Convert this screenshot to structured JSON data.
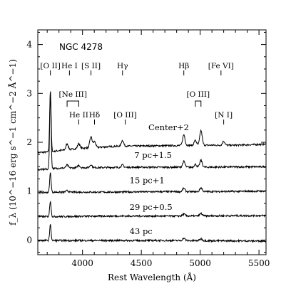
{
  "chart_data": {
    "type": "line",
    "title": "NGC 4278",
    "xlabel": "Rest Wavelength (Å)",
    "ylabel": "f_λ (10^−16 erg s^−1 cm^−2 Å^−1)",
    "xlim": [
      3620,
      5560
    ],
    "ylim": [
      -0.3,
      4.3
    ],
    "x_ticks": [
      4000,
      4500,
      5000,
      5500
    ],
    "y_ticks": [
      0,
      1,
      2,
      3,
      4
    ],
    "grid": false,
    "series": [
      {
        "name": "Center+2",
        "offset": 2.0,
        "continuum": [
          [
            3620,
            1.79
          ],
          [
            3700,
            1.8
          ],
          [
            3800,
            1.83
          ],
          [
            4000,
            1.88
          ],
          [
            4300,
            1.92
          ],
          [
            4700,
            1.93
          ],
          [
            5000,
            1.94
          ],
          [
            5300,
            1.94
          ],
          [
            5560,
            1.96
          ]
        ],
        "lines": [
          [
            3727,
            1.25
          ],
          [
            3869,
            0.12
          ],
          [
            3968,
            0.1
          ],
          [
            4072,
            0.22
          ],
          [
            4102,
            0.12
          ],
          [
            4340,
            0.12
          ],
          [
            4861,
            0.22
          ],
          [
            4959,
            0.1
          ],
          [
            5007,
            0.3
          ],
          [
            5200,
            0.08
          ]
        ]
      },
      {
        "name": "7 pc+1.5",
        "offset": 1.5,
        "continuum": [
          [
            3620,
            1.44
          ],
          [
            3700,
            1.45
          ],
          [
            3800,
            1.47
          ],
          [
            4000,
            1.48
          ],
          [
            4500,
            1.49
          ],
          [
            5000,
            1.49
          ],
          [
            5560,
            1.5
          ]
        ],
        "lines": [
          [
            3727,
            1.55
          ],
          [
            3869,
            0.06
          ],
          [
            3968,
            0.05
          ],
          [
            4072,
            0.06
          ],
          [
            4340,
            0.05
          ],
          [
            4861,
            0.12
          ],
          [
            4959,
            0.06
          ],
          [
            5007,
            0.14
          ]
        ]
      },
      {
        "name": "15 pc+1",
        "offset": 1.0,
        "continuum": [
          [
            3620,
            0.97
          ],
          [
            3800,
            0.98
          ],
          [
            4200,
            0.98
          ],
          [
            4700,
            0.99
          ],
          [
            5000,
            0.99
          ],
          [
            5560,
            1.0
          ]
        ],
        "lines": [
          [
            3727,
            0.4
          ],
          [
            3869,
            0.03
          ],
          [
            4861,
            0.07
          ],
          [
            5007,
            0.08
          ]
        ]
      },
      {
        "name": "29 pc+0.5",
        "offset": 0.5,
        "continuum": [
          [
            3620,
            0.48
          ],
          [
            3800,
            0.48
          ],
          [
            4200,
            0.49
          ],
          [
            4700,
            0.49
          ],
          [
            5560,
            0.5
          ]
        ],
        "lines": [
          [
            3727,
            0.32
          ],
          [
            4861,
            0.04
          ],
          [
            5007,
            0.05
          ]
        ]
      },
      {
        "name": "43 pc",
        "offset": 0.0,
        "continuum": [
          [
            3620,
            -0.01
          ],
          [
            3800,
            -0.01
          ],
          [
            4200,
            -0.01
          ],
          [
            4700,
            -0.01
          ],
          [
            5560,
            -0.02
          ]
        ],
        "lines": [
          [
            3727,
            0.32
          ],
          [
            4861,
            0.05
          ],
          [
            5007,
            0.04
          ]
        ]
      }
    ],
    "line_ids": [
      {
        "label": "[O II]",
        "wavelength": 3727,
        "row": "top"
      },
      {
        "label": "He I",
        "wavelength": 3889,
        "row": "top"
      },
      {
        "label": "[S II]",
        "wavelength": 4072,
        "row": "top"
      },
      {
        "label": "Hγ",
        "wavelength": 4340,
        "row": "top"
      },
      {
        "label": "Hβ",
        "wavelength": 4861,
        "row": "top"
      },
      {
        "label": "[Fe VI]",
        "wavelength": 5177,
        "row": "top"
      },
      {
        "label": "[Ne III]",
        "wavelength": [
          3869,
          3968
        ],
        "row": "middle"
      },
      {
        "label": "[O III]",
        "wavelength": [
          4959,
          5007
        ],
        "row": "middle"
      },
      {
        "label": "He II",
        "wavelength": 3968,
        "row": "bottom"
      },
      {
        "label": "Hδ",
        "wavelength": 4102,
        "row": "bottom"
      },
      {
        "label": "[O III]",
        "wavelength": 4363,
        "row": "bottom"
      },
      {
        "label": "[N I]",
        "wavelength": 5200,
        "row": "bottom"
      }
    ]
  }
}
